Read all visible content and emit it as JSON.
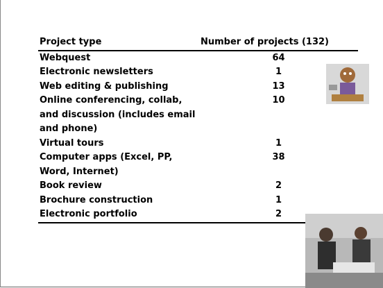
{
  "table": {
    "header": [
      "Project type",
      "Number of projects (132)"
    ],
    "rows": [
      [
        "Webquest",
        "64"
      ],
      [
        "Electronic newsletters",
        "1"
      ],
      [
        "Web editing & publishing",
        "13"
      ],
      [
        "Online conferencing, collab, and discussion (includes email and phone)",
        "10"
      ],
      [
        "Virtual tours",
        "1"
      ],
      [
        "Computer apps (Excel, PP, Word, Internet)",
        "38"
      ],
      [
        "Book review",
        "2"
      ],
      [
        "Brochure construction",
        "1"
      ],
      [
        "Electronic portfolio",
        "2"
      ]
    ]
  }
}
